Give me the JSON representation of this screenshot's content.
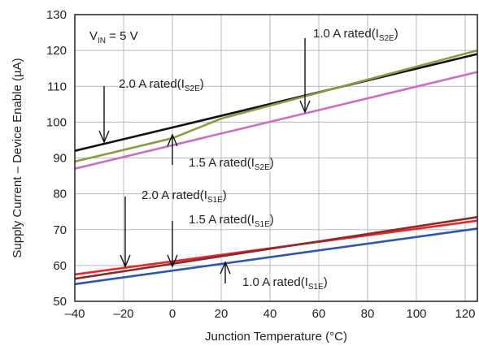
{
  "chart_data": {
    "type": "line",
    "xlabel": "Junction Temperature (°C)",
    "ylabel": "Supply Current – Device Enable (µA)",
    "xlim": [
      -40,
      125
    ],
    "ylim": [
      50,
      130
    ],
    "xticks": [
      -40,
      -20,
      0,
      20,
      40,
      60,
      80,
      100,
      120
    ],
    "xtick_labels": [
      "–40",
      "–20",
      "0",
      "20",
      "40",
      "60",
      "80",
      "100",
      "120"
    ],
    "yticks": [
      50,
      60,
      70,
      80,
      90,
      100,
      110,
      120,
      130
    ],
    "grid": true,
    "condition": {
      "main": "V",
      "sub": "IN",
      "rest": " = 5 V"
    },
    "series": [
      {
        "color": "#111111",
        "x": [
          -40,
          0,
          125
        ],
        "y": [
          92,
          98.5,
          119
        ]
      },
      {
        "color": "#8b9a45",
        "x": [
          -40,
          0,
          20,
          125
        ],
        "y": [
          89,
          95.5,
          101,
          120
        ]
      },
      {
        "color": "#c96fbf",
        "x": [
          -40,
          125
        ],
        "y": [
          87,
          114
        ]
      },
      {
        "color": "#e0292b",
        "x": [
          -40,
          125
        ],
        "y": [
          57.5,
          72.5
        ]
      },
      {
        "color": "#8a2a2e",
        "x": [
          -40,
          125
        ],
        "y": [
          56.3,
          73.5
        ]
      },
      {
        "color": "#2f57a8",
        "x": [
          -40,
          125
        ],
        "y": [
          54.8,
          70.3
        ]
      }
    ],
    "annotations": [
      {
        "text": "1.0 A rated(I",
        "sub": "S2E",
        "close": ")",
        "tx": 385,
        "ty": 46,
        "arrow": {
          "x": 375,
          "y1": 47,
          "y2": 138,
          "dir": "down"
        }
      },
      {
        "text": "2.0 A rated(I",
        "sub": "S2E",
        "close": ")",
        "tx": 146,
        "ty": 108,
        "arrow": {
          "x": 128,
          "y1": 106,
          "y2": 175,
          "dir": "down"
        }
      },
      {
        "text": "1.5 A rated(I",
        "sub": "S2E",
        "close": ")",
        "tx": 232,
        "ty": 205,
        "arrow": {
          "x": 212,
          "y1": 203,
          "y2": 166,
          "dir": "up"
        }
      },
      {
        "text": "2.0 A rated(I",
        "sub": "S1E",
        "close": ")",
        "tx": 174,
        "ty": 245,
        "arrow": {
          "x": 154,
          "y1": 242,
          "y2": 328,
          "dir": "down"
        }
      },
      {
        "text": "1.5 A rated(I",
        "sub": "S1E",
        "close": ")",
        "tx": 232,
        "ty": 275,
        "arrow": {
          "x": 212,
          "y1": 272,
          "y2": 328,
          "dir": "down"
        }
      },
      {
        "text": "1.0 A rated(I",
        "sub": "S1E",
        "close": ")",
        "tx": 298,
        "ty": 352,
        "arrow": {
          "x": 277,
          "y1": 349,
          "y2": 323,
          "dir": "up"
        }
      }
    ]
  }
}
